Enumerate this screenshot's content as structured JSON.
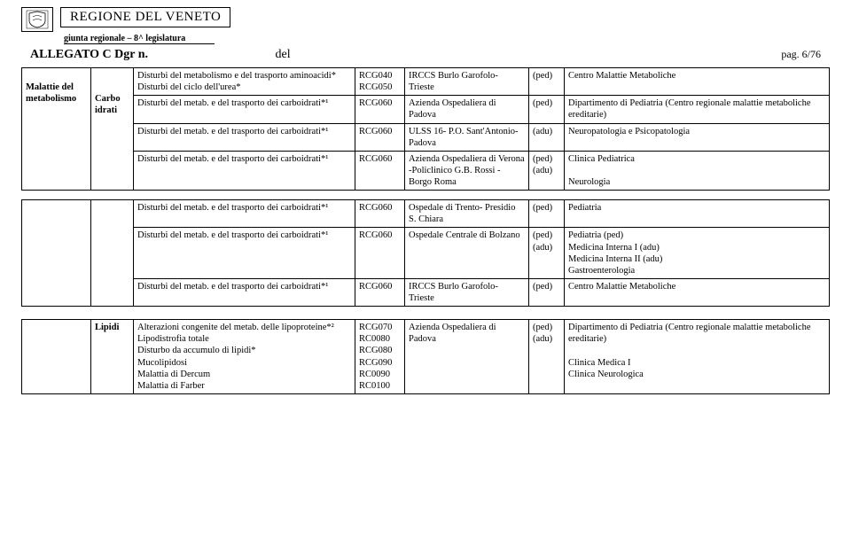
{
  "header": {
    "region": "REGIONE DEL VENETO",
    "giunta": "giunta regionale – 8^ legislatura",
    "allegato": "ALLEGATO C Dgr n.",
    "del": "del",
    "pag": "pag. 6/76"
  },
  "section1": {
    "rowhead1": "Malattie del metabolismo",
    "rowhead2": "Carbo idrati",
    "r1c": "Disturbi del metabolismo e del trasporto aminoacidi*\nDisturbi del ciclo dell'urea*",
    "r1d": "RCG040\nRCG050",
    "r1e": "IRCCS Burlo Garofolo- Trieste",
    "r1f": "(ped)",
    "r1g": "Centro Malattie Metaboliche",
    "r2c": "Disturbi del metab. e del trasporto dei carboidrati*¹",
    "r2d": "RCG060",
    "r2e": "Azienda Ospedaliera di Padova",
    "r2f": "(ped)",
    "r2g": "Dipartimento di Pediatria (Centro regionale malattie metaboliche ereditarie)",
    "r3c": "Disturbi del metab. e del trasporto dei carboidrati*¹",
    "r3d": "RCG060",
    "r3e": "ULSS 16- P.O. Sant'Antonio- Padova",
    "r3f": "(adu)",
    "r3g": "Neuropatologia e Psicopatologia",
    "r4c": "Disturbi del metab. e del trasporto dei carboidrati*¹",
    "r4d": "RCG060",
    "r4e": "Azienda Ospedaliera di Verona -Policlinico G.B. Rossi - Borgo Roma",
    "r4f": "(ped)\n(adu)",
    "r4g": "Clinica Pediatrica\n\nNeurologia"
  },
  "section2": {
    "r1c": "Disturbi del metab. e del trasporto dei carboidrati*¹",
    "r1d": "RCG060",
    "r1e": "Ospedale di Trento- Presidio S. Chiara",
    "r1f": "(ped)",
    "r1g": "Pediatria",
    "r2c": "Disturbi del metab. e del trasporto dei carboidrati*¹",
    "r2d": "RCG060",
    "r2e": "Ospedale Centrale di Bolzano",
    "r2f": "(ped)\n(adu)",
    "r2g": "Pediatria (ped)\nMedicina Interna I (adu)\nMedicina Interna II (adu)\nGastroenterologia",
    "r3c": "Disturbi del metab. e del trasporto dei carboidrati*¹",
    "r3d": "RCG060",
    "r3e": "IRCCS Burlo Garofolo- Trieste",
    "r3f": "(ped)",
    "r3g": "Centro Malattie Metaboliche"
  },
  "section3": {
    "rowhead": "Lipidi",
    "r1c": "Alterazioni congenite del metab. delle lipoproteine*²\nLipodistrofia totale\nDisturbo da accumulo di lipidi*\nMucolipidosi\nMalattia di Dercum\nMalattia di Farber",
    "r1d": "RCG070\nRC0080\nRCG080\nRCG090\nRC0090\nRC0100",
    "r1e": "Azienda Ospedaliera di Padova",
    "r1f": "(ped)\n(adu)",
    "r1g": "Dipartimento di Pediatria (Centro regionale malattie metaboliche ereditarie)\n\nClinica Medica I\nClinica Neurologica"
  }
}
